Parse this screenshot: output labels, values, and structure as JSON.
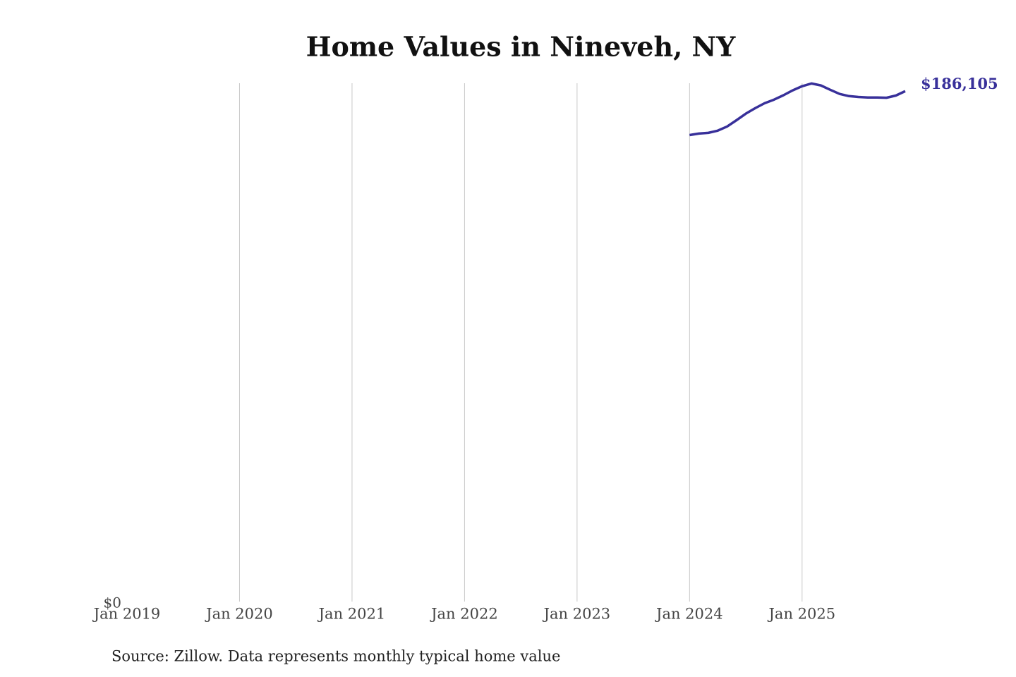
{
  "chart_data": {
    "type": "line",
    "title": "Home Values in Nineveh, NY",
    "source": "Source: Zillow. Data represents monthly typical home value",
    "x": [
      "2024-01",
      "2024-02",
      "2024-03",
      "2024-04",
      "2024-05",
      "2024-06",
      "2024-07",
      "2024-08",
      "2024-09",
      "2024-10",
      "2024-11",
      "2024-12",
      "2025-01",
      "2025-02",
      "2025-03",
      "2025-04",
      "2025-05",
      "2025-06",
      "2025-07",
      "2025-08",
      "2025-09",
      "2025-10",
      "2025-11",
      "2025-12"
    ],
    "series": [
      {
        "name": "Nineveh, NY",
        "color": "#38309a",
        "values": [
          170100,
          170650,
          170900,
          171700,
          173200,
          175500,
          177900,
          179900,
          181700,
          183000,
          184600,
          186400,
          187900,
          188900,
          188200,
          186600,
          185100,
          184300,
          184000,
          183800,
          183800,
          183700,
          184500,
          186105
        ],
        "value_labels": [
          null,
          null,
          null,
          null,
          null,
          null,
          null,
          null,
          null,
          null,
          null,
          null,
          null,
          null,
          null,
          null,
          null,
          null,
          null,
          null,
          null,
          null,
          null,
          "$186,105"
        ]
      }
    ],
    "xlim": [
      "2019-01",
      "2025-12"
    ],
    "xticks": [
      {
        "value": "2019-01",
        "label": "Jan 2019"
      },
      {
        "value": "2020-01",
        "label": "Jan 2020"
      },
      {
        "value": "2021-01",
        "label": "Jan 2021"
      },
      {
        "value": "2022-01",
        "label": "Jan 2022"
      },
      {
        "value": "2023-01",
        "label": "Jan 2023"
      },
      {
        "value": "2024-01",
        "label": "Jan 2024"
      },
      {
        "value": "2025-01",
        "label": "Jan 2025"
      }
    ],
    "ylim": [
      0,
      189000
    ],
    "yticks": [
      {
        "value": 0,
        "label": "$0"
      }
    ],
    "grid": true
  }
}
